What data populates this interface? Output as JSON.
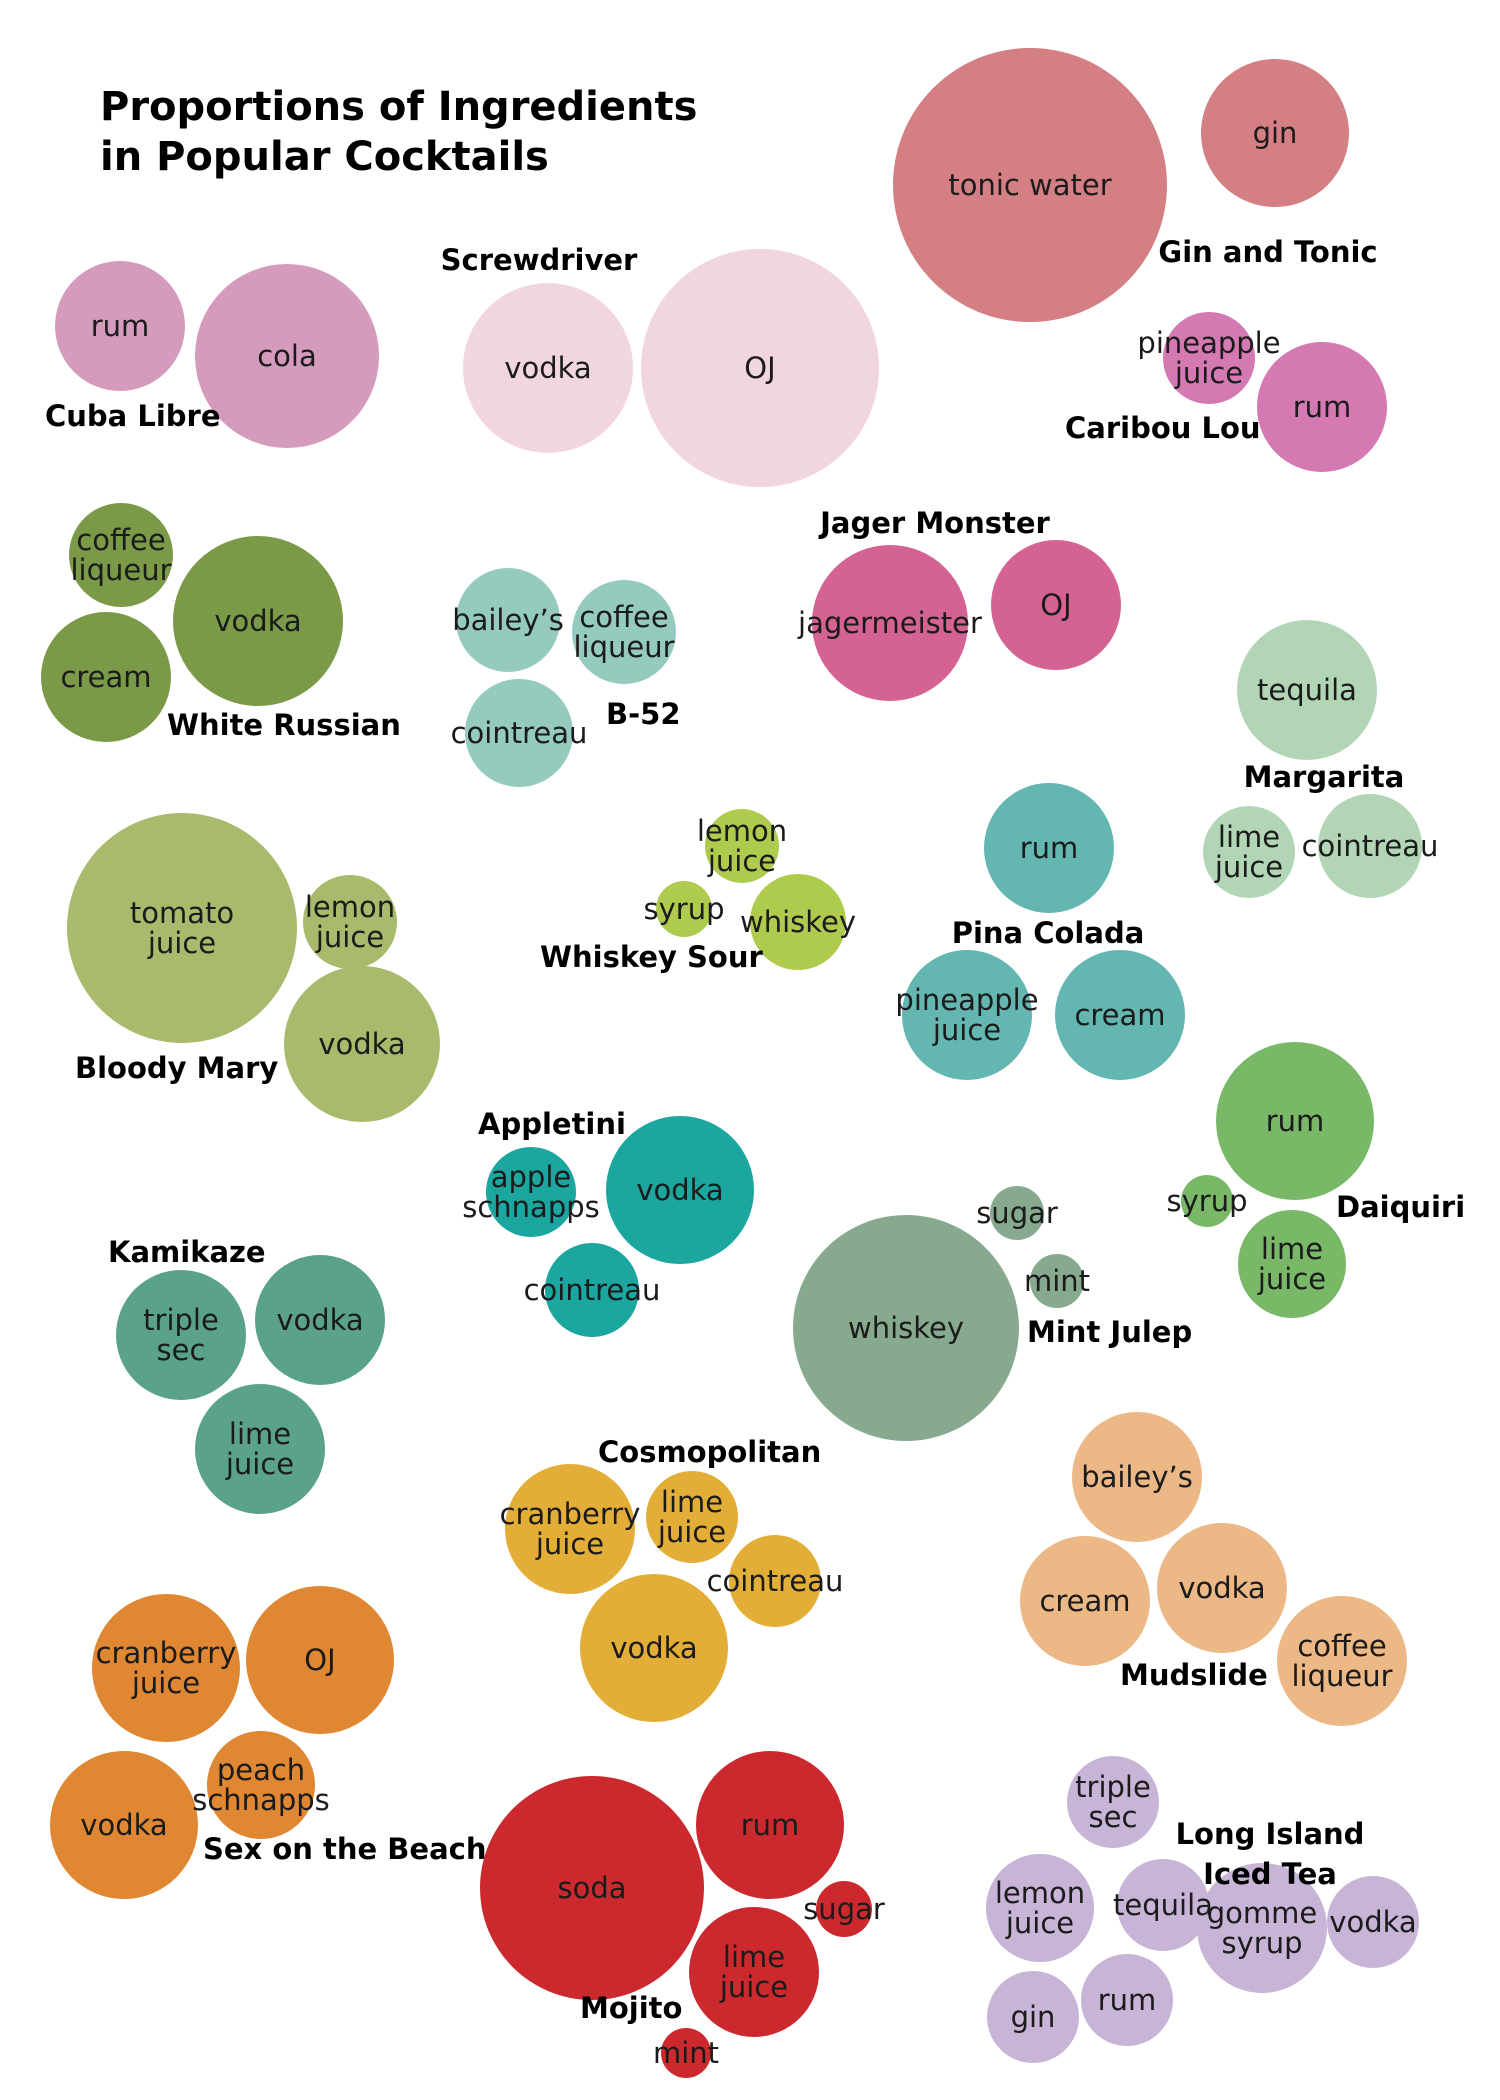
{
  "title": {
    "line1": "Proportions of Ingredients",
    "line2": "in Popular Cocktails"
  },
  "cocktails": [
    {
      "name": "Gin and Tonic",
      "color": "#d47f84",
      "ingredients": [
        {
          "label": [
            "tonic water"
          ]
        },
        {
          "label": [
            "gin"
          ]
        }
      ]
    },
    {
      "name": "Cuba Libre",
      "color": "#d59bbd",
      "ingredients": [
        {
          "label": [
            "rum"
          ]
        },
        {
          "label": [
            "cola"
          ]
        }
      ]
    },
    {
      "name": "Screwdriver",
      "color": "#f1d6de",
      "ingredients": [
        {
          "label": [
            "vodka"
          ]
        },
        {
          "label": [
            "OJ"
          ]
        }
      ]
    },
    {
      "name": "Caribou Lou",
      "color": "#d479b2",
      "ingredients": [
        {
          "label": [
            "pineapple",
            "juice"
          ]
        },
        {
          "label": [
            "rum"
          ]
        }
      ]
    },
    {
      "name": "White Russian",
      "color": "#7a9a48",
      "ingredients": [
        {
          "label": [
            "coffee",
            "liqueur"
          ]
        },
        {
          "label": [
            "vodka"
          ]
        },
        {
          "label": [
            "cream"
          ]
        }
      ]
    },
    {
      "name": "B-52",
      "color": "#94cbbe",
      "ingredients": [
        {
          "label": [
            "bailey’s"
          ]
        },
        {
          "label": [
            "coffee",
            "liqueur"
          ]
        },
        {
          "label": [
            "cointreau"
          ]
        }
      ]
    },
    {
      "name": "Jager Monster",
      "color": "#d46293",
      "ingredients": [
        {
          "label": [
            "jagermeister"
          ]
        },
        {
          "label": [
            "OJ"
          ]
        }
      ]
    },
    {
      "name": "Margarita",
      "color": "#b2d6b5",
      "ingredients": [
        {
          "label": [
            "tequila"
          ]
        },
        {
          "label": [
            "lime",
            "juice"
          ]
        },
        {
          "label": [
            "cointreau"
          ]
        }
      ]
    },
    {
      "name": "Bloody Mary",
      "color": "#a8bb6c",
      "ingredients": [
        {
          "label": [
            "tomato",
            "juice"
          ]
        },
        {
          "label": [
            "lemon",
            "juice"
          ]
        },
        {
          "label": [
            "vodka"
          ]
        }
      ]
    },
    {
      "name": "Whiskey Sour",
      "color": "#aecb4e",
      "ingredients": [
        {
          "label": [
            "lemon",
            "juice"
          ]
        },
        {
          "label": [
            "syrup"
          ]
        },
        {
          "label": [
            "whiskey"
          ]
        }
      ]
    },
    {
      "name": "Pina Colada",
      "color": "#64b6b1",
      "ingredients": [
        {
          "label": [
            "rum"
          ]
        },
        {
          "label": [
            "pineapple",
            "juice"
          ]
        },
        {
          "label": [
            "cream"
          ]
        }
      ]
    },
    {
      "name": "Appletini",
      "color": "#1ba69f",
      "ingredients": [
        {
          "label": [
            "apple",
            "schnapps"
          ]
        },
        {
          "label": [
            "vodka"
          ]
        },
        {
          "label": [
            "cointreau"
          ]
        }
      ]
    },
    {
      "name": "Daiquiri",
      "color": "#78b867",
      "ingredients": [
        {
          "label": [
            "rum"
          ]
        },
        {
          "label": [
            "syrup"
          ]
        },
        {
          "label": [
            "lime",
            "juice"
          ]
        }
      ]
    },
    {
      "name": "Mint Julep",
      "color": "#87aa8f",
      "ingredients": [
        {
          "label": [
            "whiskey"
          ]
        },
        {
          "label": [
            "sugar"
          ]
        },
        {
          "label": [
            "mint"
          ]
        }
      ]
    },
    {
      "name": "Kamikaze",
      "color": "#5aa389",
      "ingredients": [
        {
          "label": [
            "triple",
            "sec"
          ]
        },
        {
          "label": [
            "vodka"
          ]
        },
        {
          "label": [
            "lime",
            "juice"
          ]
        }
      ]
    },
    {
      "name": "Cosmopolitan",
      "color": "#e3ae37",
      "ingredients": [
        {
          "label": [
            "cranberry",
            "juice"
          ]
        },
        {
          "label": [
            "lime",
            "juice"
          ]
        },
        {
          "label": [
            "cointreau"
          ]
        },
        {
          "label": [
            "vodka"
          ]
        }
      ]
    },
    {
      "name": "Mudslide",
      "color": "#ebb886",
      "ingredients": [
        {
          "label": [
            "bailey’s"
          ]
        },
        {
          "label": [
            "cream"
          ]
        },
        {
          "label": [
            "vodka"
          ]
        },
        {
          "label": [
            "coffee",
            "liqueur"
          ]
        }
      ]
    },
    {
      "name": "Sex on the Beach",
      "color": "#df8732",
      "ingredients": [
        {
          "label": [
            "cranberry",
            "juice"
          ]
        },
        {
          "label": [
            "OJ"
          ]
        },
        {
          "label": [
            "peach",
            "schnapps"
          ]
        },
        {
          "label": [
            "vodka"
          ]
        }
      ]
    },
    {
      "name": "Mojito",
      "color": "#cb292d",
      "ingredients": [
        {
          "label": [
            "soda"
          ]
        },
        {
          "label": [
            "rum"
          ]
        },
        {
          "label": [
            "lime",
            "juice"
          ]
        },
        {
          "label": [
            "sugar"
          ]
        },
        {
          "label": [
            "mint"
          ]
        }
      ]
    },
    {
      "name": "Long Island Iced Tea",
      "color": "#c8b4d7",
      "ingredients": [
        {
          "label": [
            "triple",
            "sec"
          ]
        },
        {
          "label": [
            "lemon",
            "juice"
          ]
        },
        {
          "label": [
            "tequila"
          ]
        },
        {
          "label": [
            "vodka"
          ]
        },
        {
          "label": [
            "gomme",
            "syrup"
          ]
        },
        {
          "label": [
            "gin"
          ]
        },
        {
          "label": [
            "rum"
          ]
        }
      ]
    }
  ]
}
